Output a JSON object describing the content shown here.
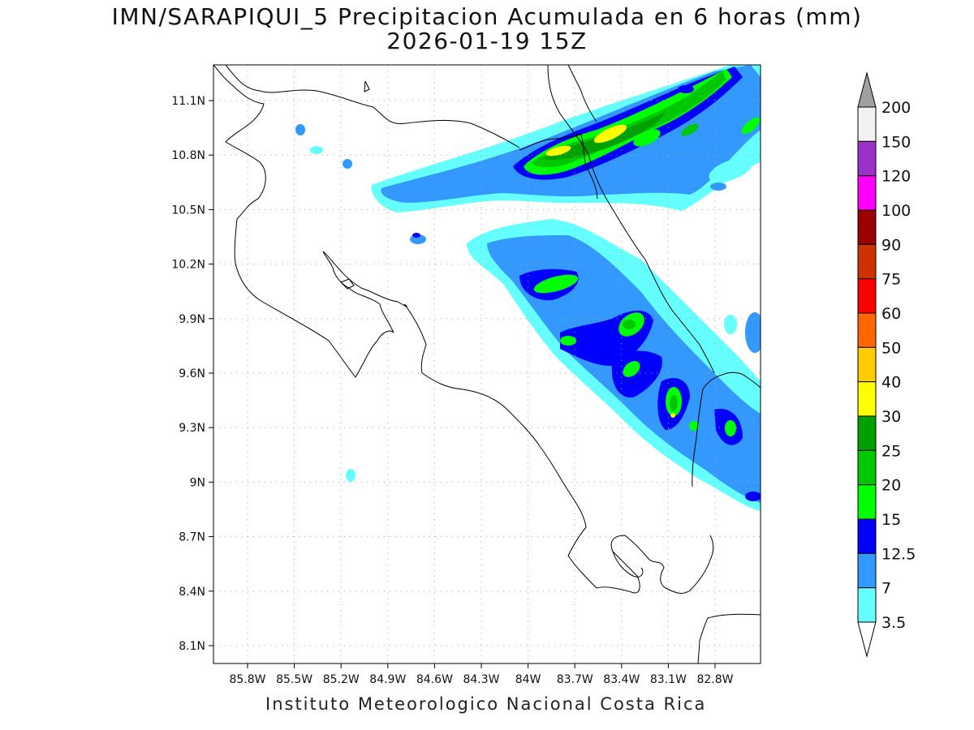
{
  "title": {
    "line1": "IMN/SARAPIQUI_5 Precipitacion Acumulada en 6 horas (mm)",
    "line2": "2026-01-19 15Z"
  },
  "footer": "Instituto Meteorologico Nacional Costa Rica",
  "lat_ticks": [
    "11.1N",
    "10.8N",
    "10.5N",
    "10.2N",
    "9.9N",
    "9.6N",
    "9.3N",
    "9N",
    "8.7N",
    "8.4N",
    "8.1N"
  ],
  "lon_ticks": [
    "85.8W",
    "85.5W",
    "85.2W",
    "84.9W",
    "84.6W",
    "84.3W",
    "84W",
    "83.7W",
    "83.4W",
    "83.1W",
    "82.8W"
  ],
  "colorbar": {
    "top_arrow_color": "#a0a0a0",
    "bottom_arrow_color": "#ffffff",
    "classes": [
      {
        "label": "200",
        "color": "#f2f2f2"
      },
      {
        "label": "150",
        "color": "#9b32c8"
      },
      {
        "label": "120",
        "color": "#ff00ff"
      },
      {
        "label": "100",
        "color": "#9b0000"
      },
      {
        "label": "90",
        "color": "#cc3300"
      },
      {
        "label": "75",
        "color": "#ff0000"
      },
      {
        "label": "60",
        "color": "#ff6600"
      },
      {
        "label": "50",
        "color": "#ffcc00"
      },
      {
        "label": "40",
        "color": "#ffff00"
      },
      {
        "label": "30",
        "color": "#00a000"
      },
      {
        "label": "25",
        "color": "#00c800"
      },
      {
        "label": "20",
        "color": "#00ff00"
      },
      {
        "label": "15",
        "color": "#0000ff"
      },
      {
        "label": "12.5",
        "color": "#3399ff"
      },
      {
        "label": "7",
        "color": "#66ffff"
      },
      {
        "label": "3.5",
        "color": null
      }
    ]
  },
  "precip_colors": {
    "c3_5": "#66ffff",
    "c7": "#3399ff",
    "c12_5": "#0000ff",
    "c15": "#00ff00",
    "c20": "#00c800",
    "c25": "#00a000",
    "c30": "#ffff00"
  }
}
